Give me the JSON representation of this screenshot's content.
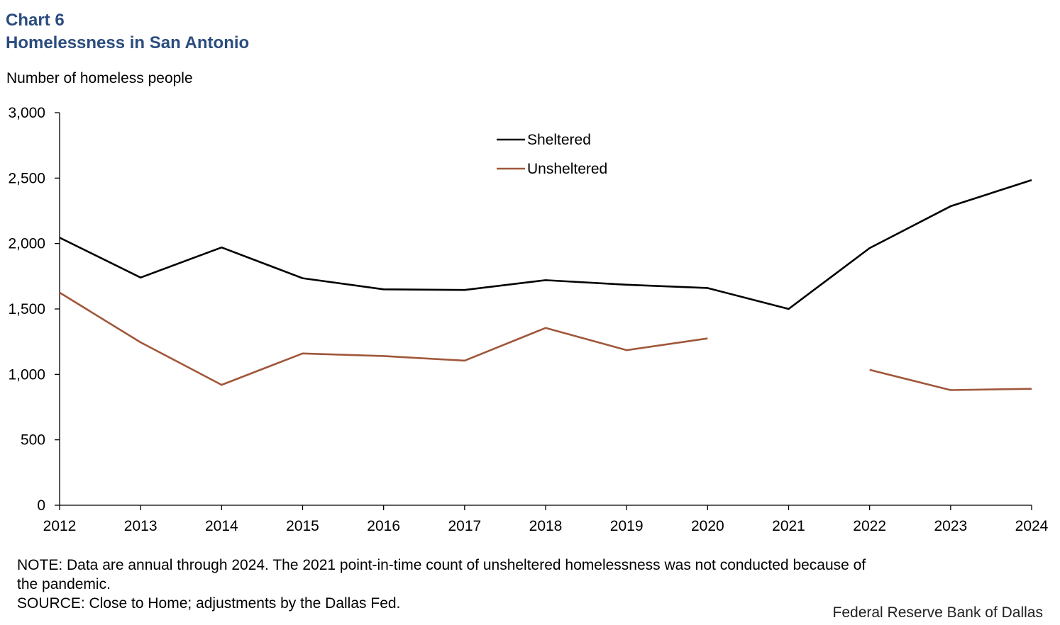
{
  "header": {
    "chart_number": "Chart 6",
    "title": "Homelessness in San Antonio"
  },
  "colors": {
    "title": "#2b4c7e",
    "sheltered": "#000000",
    "unsheltered": "#a0573a"
  },
  "chart_data": {
    "type": "line",
    "title": "Homelessness in San Antonio",
    "ylabel": "Number of homeless people",
    "xlabel": "",
    "ylim": [
      0,
      3000
    ],
    "yticks": [
      0,
      500,
      1000,
      1500,
      2000,
      2500,
      3000
    ],
    "ytick_labels": [
      "0",
      "500",
      "1,000",
      "1,500",
      "2,000",
      "2,500",
      "3,000"
    ],
    "x": [
      "2012",
      "2013",
      "2014",
      "2015",
      "2016",
      "2017",
      "2018",
      "2019",
      "2020",
      "2021",
      "2022",
      "2023",
      "2024"
    ],
    "legend_position": "top-center",
    "series": [
      {
        "name": "Sheltered",
        "values": [
          2045,
          1740,
          1970,
          1735,
          1650,
          1645,
          1720,
          1685,
          1660,
          1500,
          1965,
          2285,
          2485
        ]
      },
      {
        "name": "Unsheltered",
        "values": [
          1625,
          1245,
          920,
          1160,
          1140,
          1105,
          1355,
          1185,
          1275,
          null,
          1035,
          880,
          890
        ]
      }
    ]
  },
  "footer": {
    "note_line1": "NOTE: Data are annual through 2024. The 2021 point-in-time count of unsheltered homelessness was not conducted because of",
    "note_line2": "the pandemic.",
    "source": "SOURCE: Close to Home; adjustments by the Dallas Fed.",
    "credit": "Federal Reserve Bank of Dallas"
  }
}
